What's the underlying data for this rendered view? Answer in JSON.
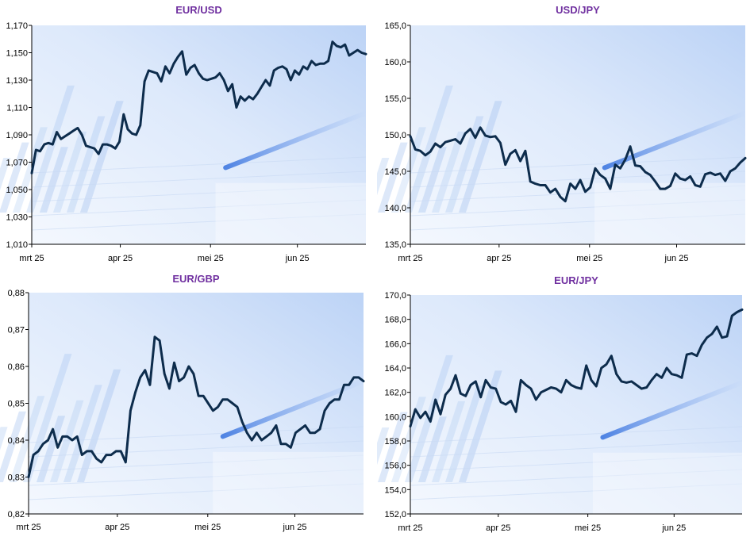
{
  "chart_data": [
    {
      "type": "line",
      "title": "EUR/USD",
      "xlabel": "",
      "ylabel": "",
      "x_ticks": [
        "mrt 25",
        "apr 25",
        "mei 25",
        "jun 25"
      ],
      "ylim": [
        1.01,
        1.17
      ],
      "y_ticks": [
        "1,010",
        "1,030",
        "1,050",
        "1,070",
        "1,090",
        "1,110",
        "1,130",
        "1,150",
        "1,170"
      ],
      "grid": false,
      "series": [
        {
          "color": "#0d2c4c",
          "values": [
            1.062,
            1.079,
            1.078,
            1.083,
            1.084,
            1.083,
            1.092,
            1.087,
            1.089,
            1.091,
            1.093,
            1.095,
            1.09,
            1.082,
            1.081,
            1.08,
            1.076,
            1.083,
            1.083,
            1.082,
            1.08,
            1.085,
            1.105,
            1.094,
            1.091,
            1.09,
            1.097,
            1.129,
            1.137,
            1.136,
            1.135,
            1.129,
            1.14,
            1.135,
            1.142,
            1.147,
            1.151,
            1.134,
            1.139,
            1.141,
            1.135,
            1.131,
            1.13,
            1.131,
            1.132,
            1.135,
            1.13,
            1.122,
            1.127,
            1.11,
            1.118,
            1.115,
            1.118,
            1.116,
            1.12,
            1.125,
            1.13,
            1.126,
            1.137,
            1.139,
            1.14,
            1.138,
            1.13,
            1.137,
            1.134,
            1.14,
            1.138,
            1.144,
            1.141,
            1.142,
            1.142,
            1.144,
            1.158,
            1.155,
            1.154,
            1.156,
            1.148,
            1.15,
            1.152,
            1.15,
            1.149
          ]
        }
      ]
    },
    {
      "type": "line",
      "title": "USD/JPY",
      "xlabel": "",
      "ylabel": "",
      "x_ticks": [
        "mrt 25",
        "apr 25",
        "mei 25",
        "jun 25"
      ],
      "ylim": [
        135.0,
        165.0
      ],
      "y_ticks": [
        "135,0",
        "140,0",
        "145,0",
        "150,0",
        "155,0",
        "160,0",
        "165,0"
      ],
      "grid": false,
      "series": [
        {
          "color": "#0d2c4c",
          "values": [
            149.8,
            148.0,
            147.8,
            147.2,
            147.7,
            148.8,
            148.3,
            149.0,
            149.2,
            149.4,
            148.8,
            150.2,
            150.8,
            149.6,
            151.0,
            149.9,
            149.7,
            149.8,
            148.9,
            145.9,
            147.4,
            147.9,
            146.4,
            147.8,
            143.6,
            143.3,
            143.1,
            143.1,
            142.1,
            142.6,
            141.5,
            140.9,
            143.3,
            142.6,
            143.8,
            142.2,
            142.8,
            145.4,
            144.5,
            144.0,
            142.6,
            145.9,
            145.4,
            146.6,
            148.4,
            145.8,
            145.7,
            144.9,
            144.5,
            143.6,
            142.6,
            142.6,
            143.0,
            144.7,
            144.0,
            143.8,
            144.3,
            143.1,
            142.9,
            144.6,
            144.8,
            144.5,
            144.7,
            143.7,
            145.0,
            145.4,
            146.2,
            146.8
          ]
        }
      ]
    },
    {
      "type": "line",
      "title": "EUR/GBP",
      "xlabel": "",
      "ylabel": "",
      "x_ticks": [
        "mrt 25",
        "apr 25",
        "mei 25",
        "jun 25"
      ],
      "ylim": [
        0.82,
        0.88
      ],
      "y_ticks": [
        "0,82",
        "0,83",
        "0,84",
        "0,85",
        "0,86",
        "0,87",
        "0,88"
      ],
      "grid": false,
      "series": [
        {
          "color": "#0d2c4c",
          "values": [
            0.83,
            0.836,
            0.837,
            0.839,
            0.84,
            0.843,
            0.838,
            0.841,
            0.841,
            0.84,
            0.841,
            0.836,
            0.837,
            0.837,
            0.835,
            0.834,
            0.836,
            0.836,
            0.837,
            0.837,
            0.834,
            0.848,
            0.853,
            0.857,
            0.859,
            0.855,
            0.868,
            0.867,
            0.858,
            0.854,
            0.861,
            0.856,
            0.857,
            0.86,
            0.858,
            0.852,
            0.852,
            0.85,
            0.848,
            0.849,
            0.851,
            0.851,
            0.85,
            0.849,
            0.845,
            0.842,
            0.84,
            0.842,
            0.84,
            0.841,
            0.842,
            0.844,
            0.839,
            0.839,
            0.838,
            0.842,
            0.843,
            0.844,
            0.842,
            0.842,
            0.843,
            0.848,
            0.85,
            0.851,
            0.851,
            0.855,
            0.855,
            0.857,
            0.857,
            0.856
          ]
        }
      ]
    },
    {
      "type": "line",
      "title": "EUR/JPY",
      "xlabel": "",
      "ylabel": "",
      "x_ticks": [
        "mrt 25",
        "apr 25",
        "mei 25",
        "jun 25"
      ],
      "ylim": [
        152.0,
        170.0
      ],
      "y_ticks": [
        "152,0",
        "154,0",
        "156,0",
        "158,0",
        "160,0",
        "162,0",
        "164,0",
        "166,0",
        "168,0",
        "170,0"
      ],
      "grid": false,
      "series": [
        {
          "color": "#0d2c4c",
          "values": [
            159.2,
            160.6,
            159.9,
            160.4,
            159.6,
            161.4,
            160.2,
            161.8,
            162.3,
            163.4,
            161.9,
            161.7,
            162.6,
            162.9,
            161.6,
            163.0,
            162.4,
            162.3,
            161.2,
            161.0,
            161.3,
            160.4,
            163.0,
            162.6,
            162.3,
            161.4,
            162.0,
            162.2,
            162.4,
            162.3,
            162.0,
            163.0,
            162.6,
            162.4,
            162.3,
            164.2,
            163.0,
            162.5,
            164.0,
            164.3,
            165.0,
            163.5,
            162.9,
            162.8,
            162.9,
            162.6,
            162.3,
            162.4,
            163.0,
            163.5,
            163.2,
            164.0,
            163.5,
            163.4,
            163.2,
            165.1,
            165.2,
            165.0,
            165.9,
            166.5,
            166.8,
            167.4,
            166.5,
            166.6,
            168.3,
            168.6,
            168.8
          ]
        }
      ]
    }
  ]
}
